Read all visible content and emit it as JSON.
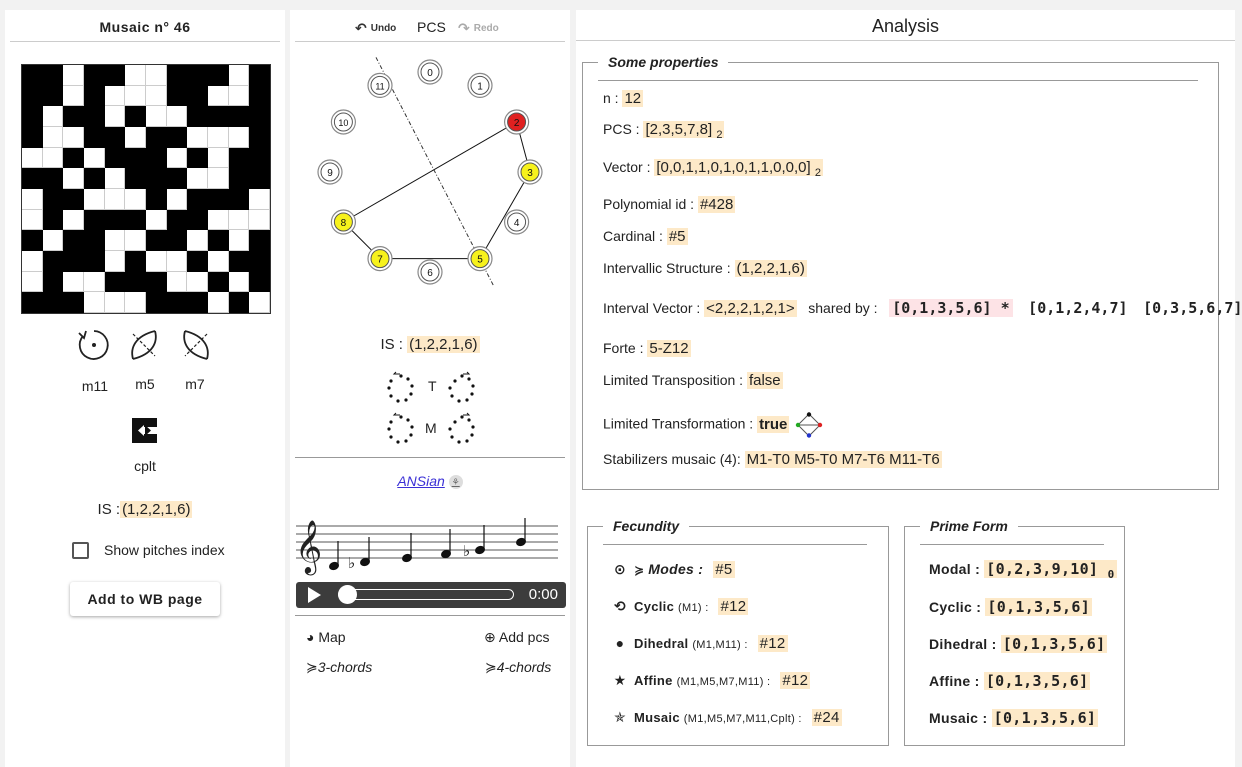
{
  "left": {
    "title": "Musaic n° 46",
    "grid": [
      "110110011101",
      "110100011001",
      "101101001111",
      "100110110001",
      "001011101011",
      "110101110011",
      "011000101110",
      "010111011000",
      "101100110101",
      "011101001011",
      "010011100101",
      "111000111010"
    ],
    "ops": [
      "m11",
      "m5",
      "m7"
    ],
    "cplt_label": "cplt",
    "is_label": "IS :",
    "is_value": "(1,2,2,1,6)",
    "show_pitches_label": "Show pitches index",
    "add_button": "Add to WB page"
  },
  "middle": {
    "undo": "Undo",
    "pcs": "PCS",
    "redo": "Redo",
    "circle": {
      "nodes": [
        "0",
        "1",
        "2",
        "3",
        "4",
        "5",
        "6",
        "7",
        "8",
        "9",
        "10",
        "11"
      ],
      "selected": [
        2,
        3,
        5,
        7,
        8
      ],
      "first": 2
    },
    "is_label": "IS :",
    "is_value": "(1,2,2,1,6)",
    "t_label": "T",
    "m_label": "M",
    "ansian": "ANSian",
    "player_time": "0:00",
    "map": "Map",
    "add_pcs": "Add pcs",
    "chords3": "3-chords",
    "chords4": "4-chords"
  },
  "analysis": {
    "title": "Analysis",
    "props_legend": "Some properties",
    "n_label": "n :",
    "n_value": "12",
    "pcs_label": "PCS :",
    "pcs_value": "[2,3,5,7,8]",
    "pcs_sub": "2",
    "vector_label": "Vector :",
    "vector_value": "[0,0,1,1,0,1,0,1,1,0,0,0]",
    "vector_sub": "2",
    "poly_label": "Polynomial id :",
    "poly_value": "#428",
    "cardinal_label": "Cardinal :",
    "cardinal_value": "#5",
    "is_label": "Intervallic Structure :",
    "is_value": "(1,2,2,1,6)",
    "iv_label": "Interval Vector :",
    "iv_value": "<2,2,2,1,2,1>",
    "shared_label": "shared by :",
    "shared": [
      "[0,1,3,5,6] *",
      "[0,1,2,4,7]",
      "[0,3,5,6,7]"
    ],
    "forte_label": "Forte :",
    "forte_value": "5-Z12",
    "lt_label": "Limited Transposition :",
    "lt_value": "false",
    "ltr_label": "Limited Transformation :",
    "ltr_value": "true",
    "stab_label": "Stabilizers musaic (4):",
    "stab_value": "M1-T0 M5-T0 M7-T6 M11-T6",
    "fecundity_legend": "Fecundity",
    "fecundity": [
      {
        "label": "Modes :",
        "ops": "",
        "value": "#5",
        "icon": "modes-icon"
      },
      {
        "label": "Cyclic",
        "ops": "(M1) :",
        "value": "#12",
        "icon": "cyclic-icon"
      },
      {
        "label": "Dihedral",
        "ops": "(M1,M11) :",
        "value": "#12",
        "icon": "dihedral-icon"
      },
      {
        "label": "Affine",
        "ops": "(M1,M5,M7,M11) :",
        "value": "#12",
        "icon": "affine-star-icon"
      },
      {
        "label": "Musaic",
        "ops": "(M1,M5,M7,M11,Cplt) :",
        "value": "#24",
        "icon": "musaic-star-icon"
      }
    ],
    "prime_legend": "Prime Form",
    "prime": [
      {
        "label": "Modal :",
        "value": "[0,2,3,9,10]",
        "sub": "0"
      },
      {
        "label": "Cyclic :",
        "value": "[0,1,3,5,6]",
        "sub": ""
      },
      {
        "label": "Dihedral :",
        "value": "[0,1,3,5,6]",
        "sub": ""
      },
      {
        "label": "Affine :",
        "value": "[0,1,3,5,6]",
        "sub": ""
      },
      {
        "label": "Musaic :",
        "value": "[0,1,3,5,6]",
        "sub": ""
      }
    ]
  }
}
